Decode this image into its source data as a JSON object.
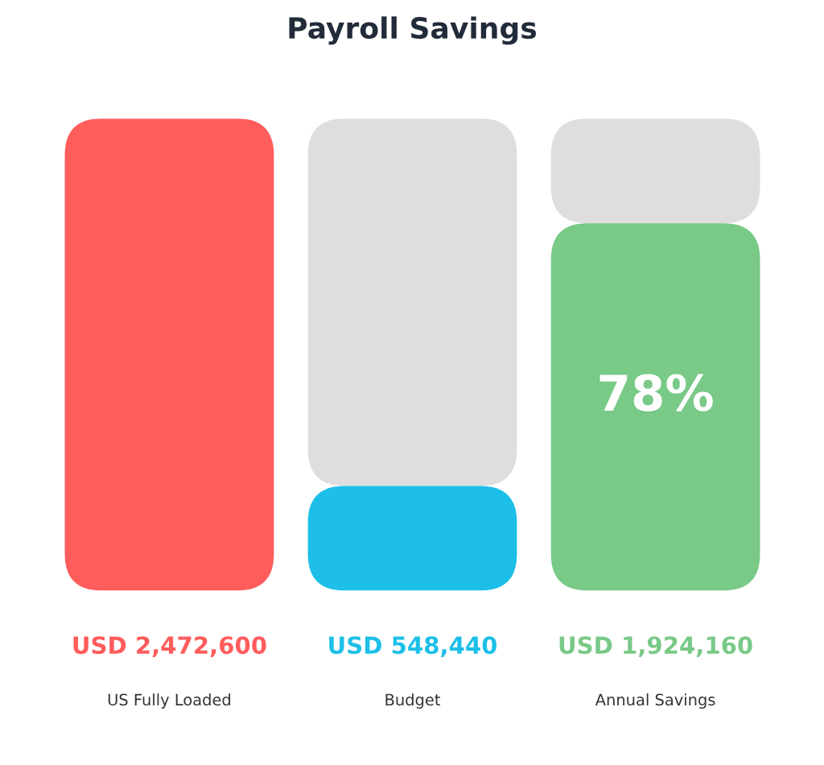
{
  "chart_data": {
    "type": "bar",
    "title": "Payroll Savings",
    "categories": [
      "US Fully Loaded",
      "Budget",
      "Annual Savings"
    ],
    "stacked": true,
    "series": [
      {
        "colors": [
          "#ff5c5c",
          "#1dbfe8",
          "#79c987"
        ],
        "values": [
          2472600,
          548440,
          1924160
        ],
        "value_labels": [
          "USD 2,472,600",
          "USD 548,440",
          "USD 1,924,160"
        ]
      },
      {
        "color": "#dedede",
        "values": [
          0,
          1924160,
          548440
        ]
      }
    ],
    "ylim": [
      0,
      2472600
    ],
    "annotations": [
      "78%"
    ],
    "grid": false,
    "legend": false
  }
}
